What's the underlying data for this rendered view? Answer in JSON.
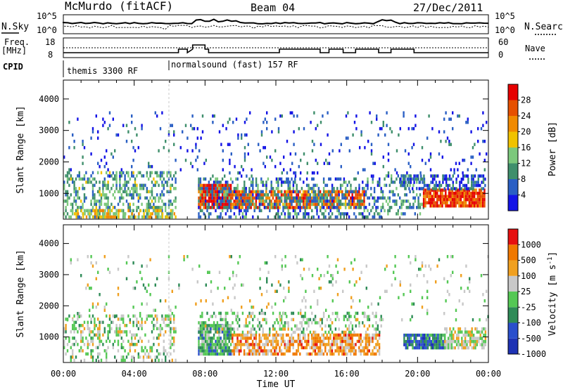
{
  "header": {
    "station": "McMurdo (fitACF)",
    "beam": "Beam 04",
    "date": "27/Dec/2011"
  },
  "summary": {
    "nsky_label": "N.Sky",
    "nsky_ticks": [
      "10^5",
      "10^0"
    ],
    "nsearch_label": "N.Search",
    "nsearch_ticks": [
      "10^5",
      "10^0"
    ],
    "freq_label": [
      "Freq.",
      "[MHz]"
    ],
    "freq_ticks": [
      "18",
      "8"
    ],
    "nave_label": "Nave",
    "nave_ticks": [
      "60",
      "0"
    ],
    "cpid_label": "CPID",
    "cpid_segments": [
      {
        "label": "themis 3300 RF",
        "start_hour": 0
      },
      {
        "label": "normalsound (fast) 157 RF",
        "start_hour": 6.0
      }
    ]
  },
  "chart_data": [
    {
      "type": "heatmap",
      "title": "",
      "ylabel": "Slant Range [km]",
      "xlabel": "",
      "x_range_hours": [
        0,
        24
      ],
      "ylim": [
        180,
        4600
      ],
      "y_ticks": [
        1000,
        2000,
        3000,
        4000
      ],
      "colorbar": {
        "label": "Power [dB]",
        "ticks": [
          4,
          8,
          12,
          16,
          20,
          24,
          28
        ],
        "range": [
          0,
          32
        ],
        "colors": [
          "#1414e6",
          "#2a5fc4",
          "#3f8f6c",
          "#7cc87c",
          "#f0c200",
          "#f08a00",
          "#e65000",
          "#e60000"
        ]
      },
      "bands": [
        {
          "start": 0.0,
          "end": 6.3,
          "rmin": 200,
          "rmax": 1700,
          "level": 0.35,
          "density": 0.42
        },
        {
          "start": 0.5,
          "end": 6.3,
          "rmin": 200,
          "rmax": 450,
          "level": 0.55,
          "density": 0.45
        },
        {
          "start": 7.6,
          "end": 9.5,
          "rmin": 500,
          "rmax": 1300,
          "level": 0.9,
          "density": 0.92
        },
        {
          "start": 9.5,
          "end": 17.0,
          "rmin": 500,
          "rmax": 1100,
          "level": 0.75,
          "density": 0.78
        },
        {
          "start": 7.6,
          "end": 18.0,
          "rmin": 200,
          "rmax": 1500,
          "level": 0.25,
          "density": 0.38
        },
        {
          "start": 18.0,
          "end": 20.3,
          "rmin": 300,
          "rmax": 1600,
          "level": 0.3,
          "density": 0.35
        },
        {
          "start": 20.3,
          "end": 23.8,
          "rmin": 550,
          "rmax": 1150,
          "level": 0.85,
          "density": 0.9
        },
        {
          "start": 19.0,
          "end": 23.8,
          "rmin": 1100,
          "rmax": 1550,
          "level": 0.2,
          "density": 0.55
        },
        {
          "start": 0.0,
          "end": 24.0,
          "rmin": 1500,
          "rmax": 3600,
          "level": 0.15,
          "density": 0.06
        }
      ]
    },
    {
      "type": "heatmap",
      "title": "",
      "ylabel": "Slant Range [km]",
      "xlabel": "Time UT",
      "x_ticks": [
        "00:00",
        "04:00",
        "08:00",
        "12:00",
        "16:00",
        "20:00",
        "00:00"
      ],
      "x_range_hours": [
        0,
        24
      ],
      "ylim": [
        180,
        4600
      ],
      "y_ticks": [
        1000,
        2000,
        3000,
        4000
      ],
      "colorbar": {
        "label": "Velocity [m s^-1]",
        "ticks": [
          1000,
          500,
          100,
          25,
          -25,
          -100,
          -500,
          -1000
        ],
        "colors": [
          "#1e32b4",
          "#2a4fcc",
          "#2e8b57",
          "#55c855",
          "#c8c8c8",
          "#f0a020",
          "#f07800",
          "#e61010"
        ]
      },
      "bands": [
        {
          "start": 0.0,
          "end": 6.3,
          "rmin": 200,
          "rmax": 1700,
          "level": 0.5,
          "density": 0.35
        },
        {
          "start": 7.6,
          "end": 9.5,
          "rmin": 400,
          "rmax": 1400,
          "level": 0.38,
          "density": 0.9
        },
        {
          "start": 9.5,
          "end": 17.8,
          "rmin": 400,
          "rmax": 1100,
          "level": 0.72,
          "density": 0.7
        },
        {
          "start": 7.6,
          "end": 18.0,
          "rmin": 1100,
          "rmax": 1800,
          "level": 0.5,
          "density": 0.35
        },
        {
          "start": 19.2,
          "end": 21.5,
          "rmin": 600,
          "rmax": 1100,
          "level": 0.25,
          "density": 0.92
        },
        {
          "start": 21.5,
          "end": 23.8,
          "rmin": 600,
          "rmax": 1300,
          "level": 0.55,
          "density": 0.7
        },
        {
          "start": 0.0,
          "end": 24.0,
          "rmin": 1500,
          "rmax": 3600,
          "level": 0.5,
          "density": 0.05
        }
      ]
    }
  ],
  "time_axis": {
    "ticks": [
      "00:00",
      "04:00",
      "08:00",
      "12:00",
      "16:00",
      "20:00",
      "00:00"
    ],
    "label": "Time UT"
  }
}
